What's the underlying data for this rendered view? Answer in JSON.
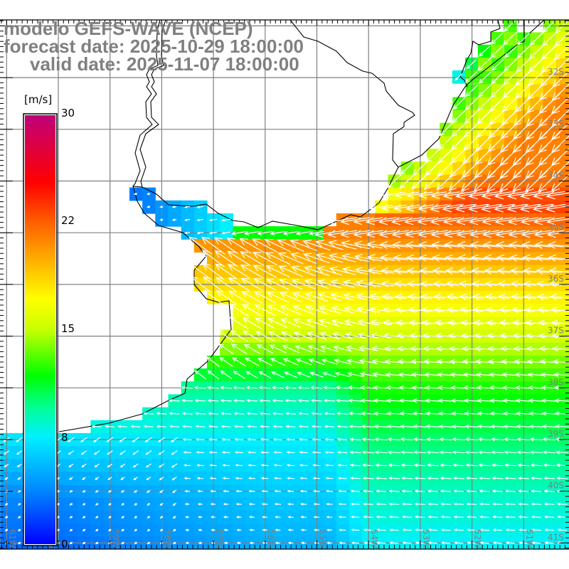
{
  "header": {
    "line1": "modelo GEFS-WAVE (NCEP)",
    "line2": "forecast date: 2025-10-29 18:00:00",
    "line3": "valid date: 2025-11-07 18:00:00"
  },
  "colorbar": {
    "unit": "[m/s]",
    "labels": [
      "30",
      "22",
      "15",
      "8",
      "0"
    ],
    "label_values": [
      30,
      22,
      15,
      8,
      0
    ],
    "colorscale": [
      {
        "v": 0,
        "c": "#0000ff"
      },
      {
        "v": 4,
        "c": "#0088ff"
      },
      {
        "v": 8,
        "c": "#00f0ff"
      },
      {
        "v": 10,
        "c": "#00ff90"
      },
      {
        "v": 12,
        "c": "#00ff00"
      },
      {
        "v": 15,
        "c": "#c8ff00"
      },
      {
        "v": 17,
        "c": "#ffff00"
      },
      {
        "v": 19,
        "c": "#ffc000"
      },
      {
        "v": 22,
        "c": "#ff6000"
      },
      {
        "v": 25,
        "c": "#ff0000"
      },
      {
        "v": 30,
        "c": "#c0007a"
      }
    ]
  },
  "axes": {
    "lon_labels": [
      "61W",
      "60W",
      "59W",
      "58W",
      "57W",
      "56W",
      "55W",
      "54W",
      "53W",
      "52W",
      "51W"
    ],
    "lat_labels": [
      "32S",
      "33S",
      "34S",
      "35S",
      "36S",
      "37S",
      "38S",
      "39S",
      "40S",
      "41S"
    ]
  },
  "colors": {
    "grid": "#808080",
    "label": "#808080",
    "coast": "#000000",
    "arrow": "#ffffff"
  }
}
